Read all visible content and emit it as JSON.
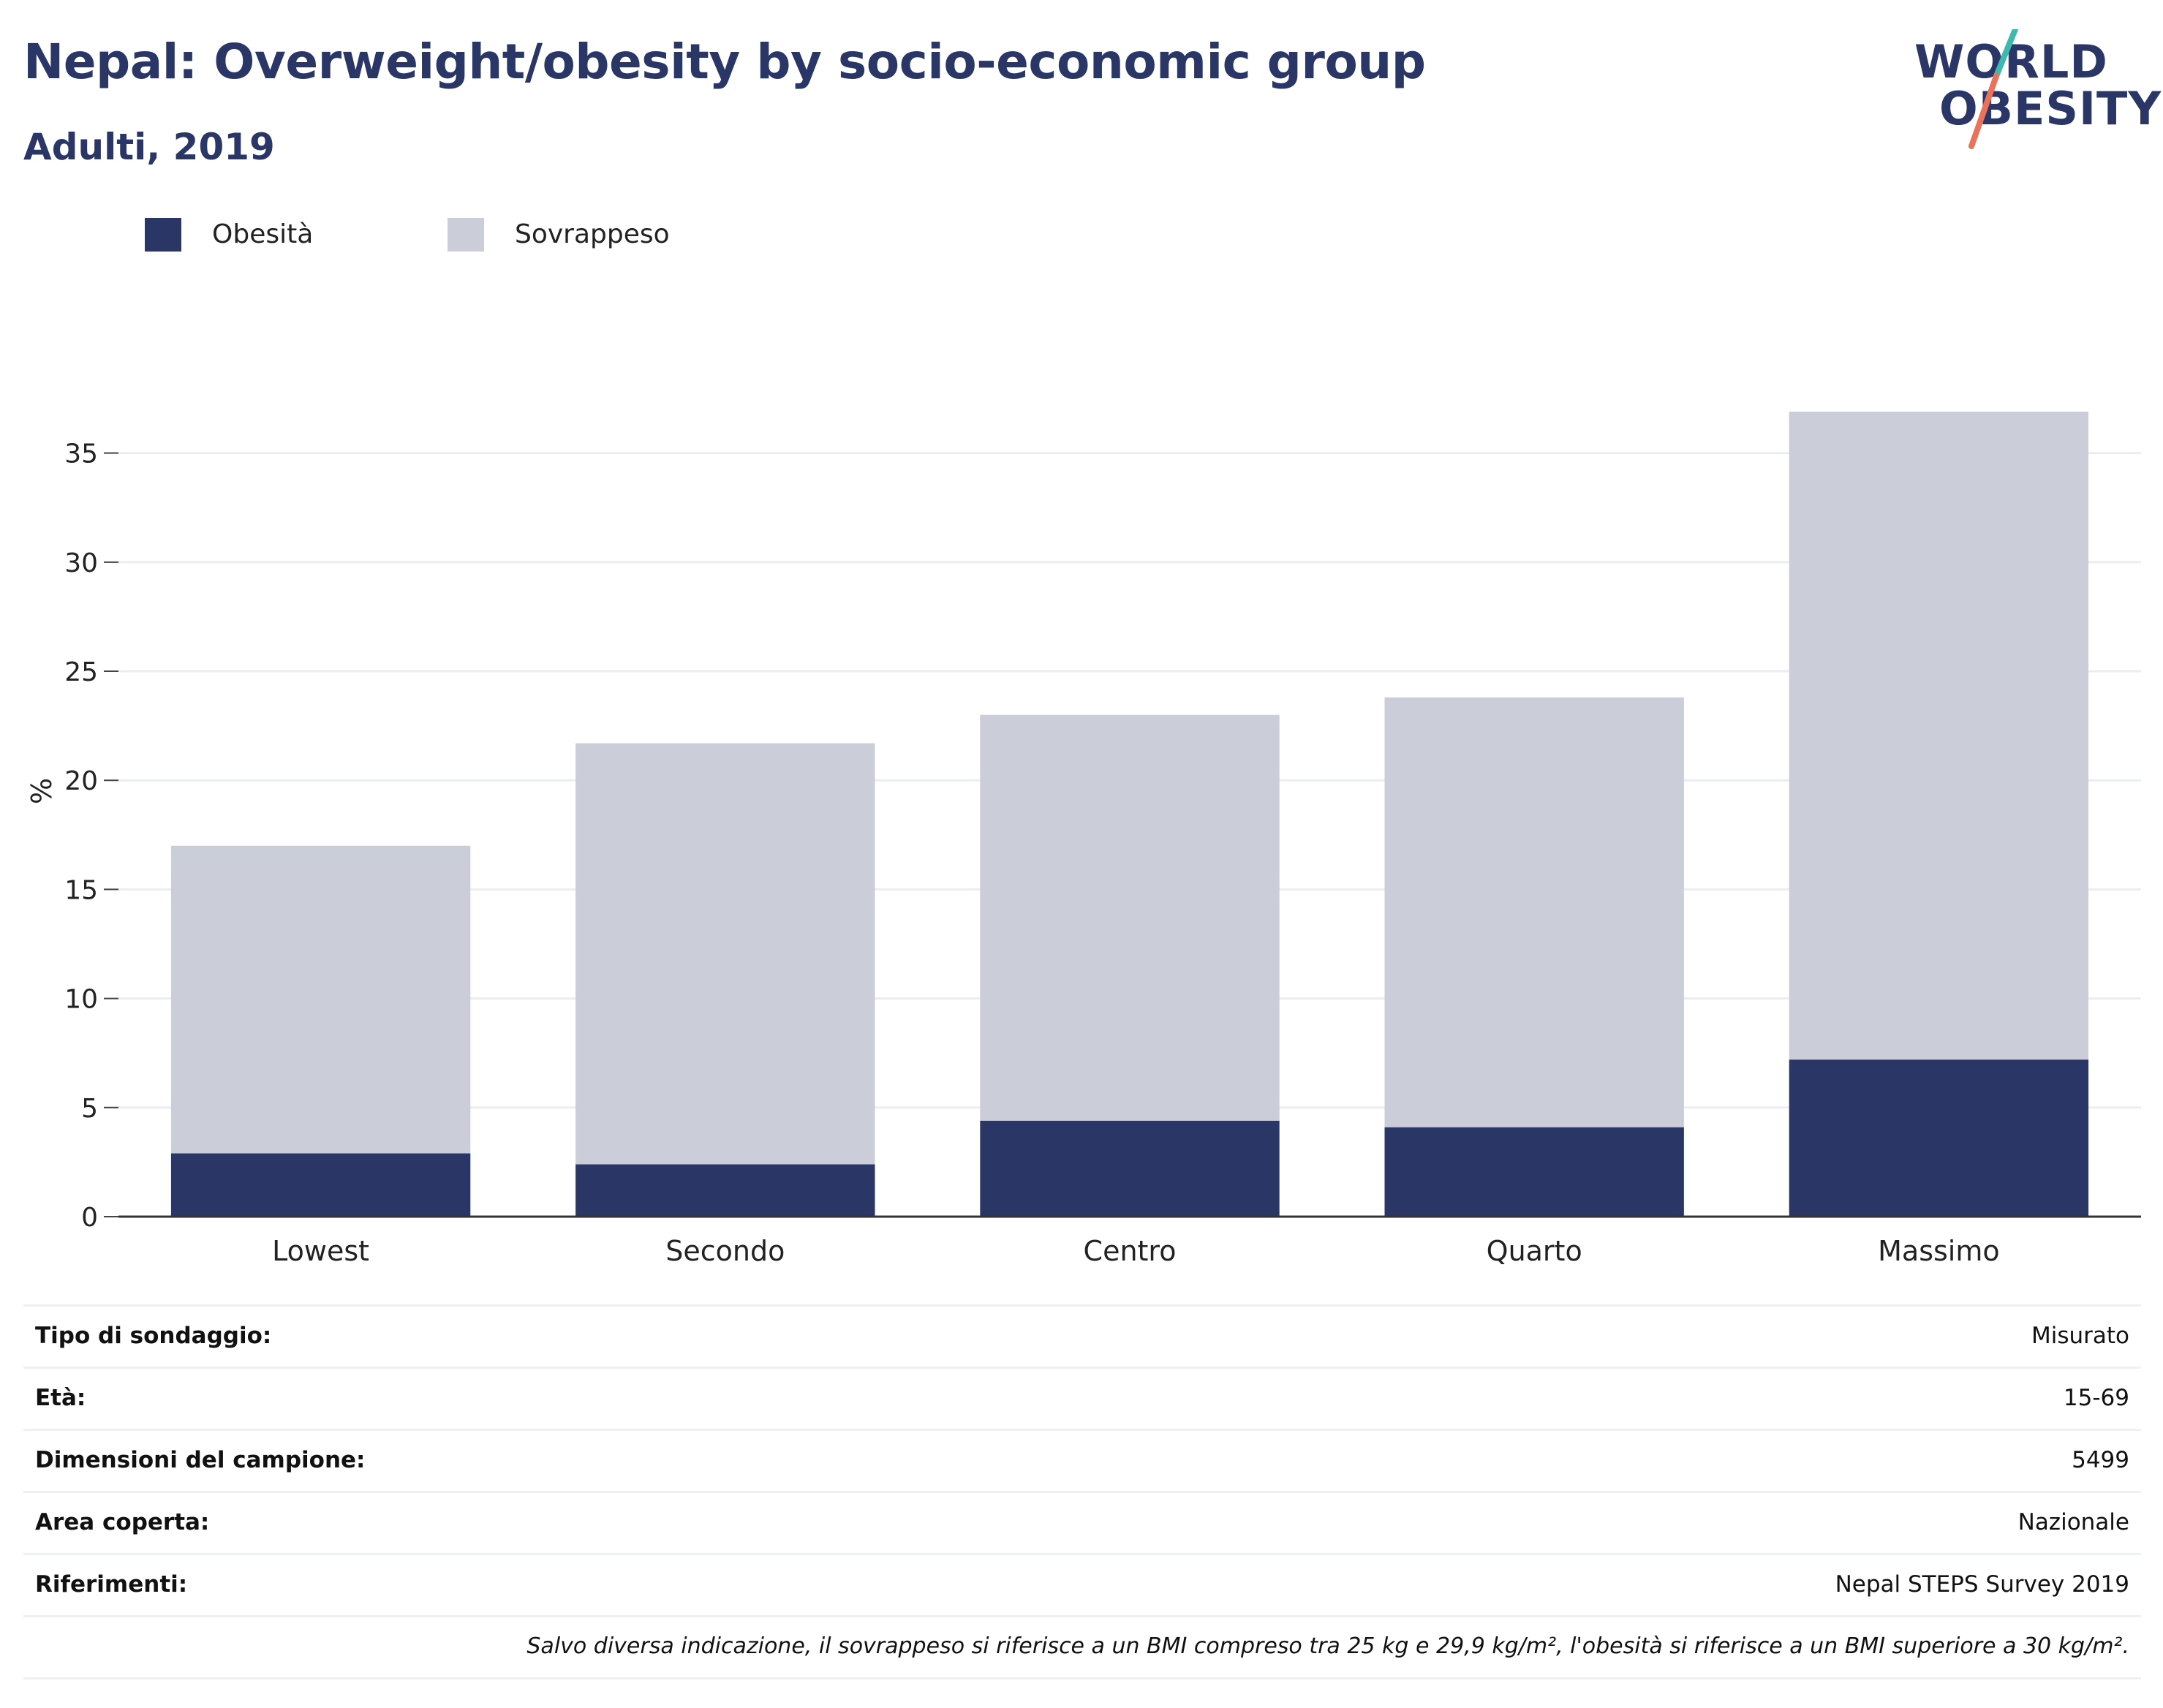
{
  "header": {
    "title": "Nepal: Overweight/obesity by socio-economic group",
    "subtitle": "Adulti, 2019"
  },
  "logo": {
    "line1": "WORLD",
    "line2": "OBESITY",
    "colors": {
      "text": "#2a3766",
      "slash_top": "#3fb8b0",
      "slash_bottom": "#e8735a"
    }
  },
  "legend": [
    {
      "label": "Obesità",
      "color": "#2a3766"
    },
    {
      "label": "Sovrappeso",
      "color": "#cbcdd8"
    }
  ],
  "chart_data": {
    "type": "bar",
    "stacked": true,
    "categories": [
      "Lowest",
      "Secondo",
      "Centro",
      "Quarto",
      "Massimo"
    ],
    "series": [
      {
        "name": "Obesità",
        "color": "#2a3766",
        "values": [
          2.9,
          2.4,
          4.4,
          4.1,
          7.2
        ]
      },
      {
        "name": "Sovrappeso",
        "color": "#cbcdd8",
        "values": [
          14.1,
          19.3,
          18.6,
          19.7,
          29.7
        ]
      }
    ],
    "ylabel": "%",
    "xlabel": "",
    "ylim": [
      0,
      37
    ],
    "yticks": [
      0,
      5,
      10,
      15,
      20,
      25,
      30,
      35
    ],
    "grid": true,
    "legend_position": "top-left"
  },
  "info": {
    "rows": [
      {
        "label": "Tipo di sondaggio:",
        "value": "Misurato"
      },
      {
        "label": "Età:",
        "value": "15-69"
      },
      {
        "label": "Dimensioni del campione:",
        "value": "5499"
      },
      {
        "label": "Area coperta:",
        "value": "Nazionale"
      },
      {
        "label": "Riferimenti:",
        "value": "Nepal STEPS Survey 2019"
      }
    ],
    "note": "Salvo diversa indicazione, il sovrappeso si riferisce a un BMI compreso tra 25 kg e 29,9 kg/m², l'obesità si riferisce a un BMI superiore a 30 kg/m²."
  }
}
